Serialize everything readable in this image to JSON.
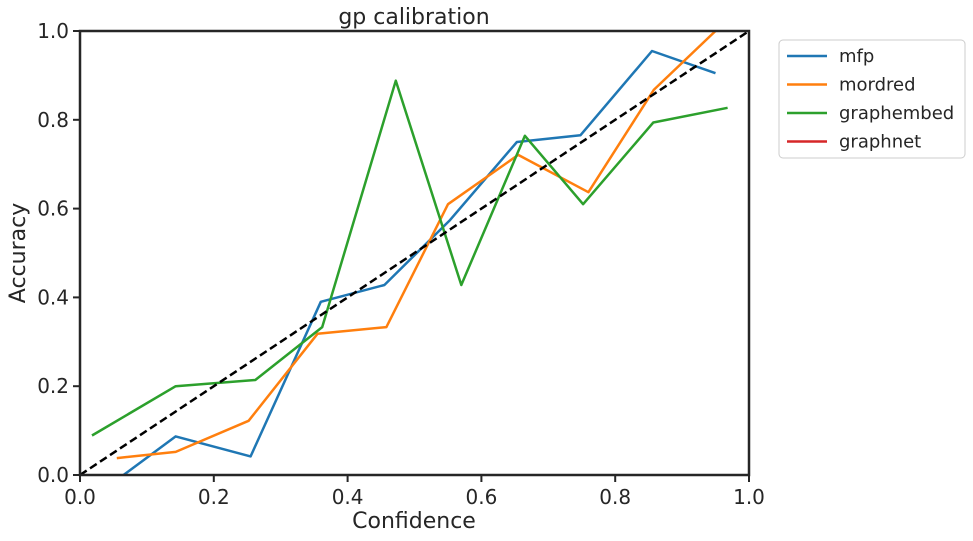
{
  "chart_data": {
    "type": "line",
    "title": "gp calibration",
    "xlabel": "Confidence",
    "ylabel": "Accuracy",
    "xlim": [
      0.0,
      1.0
    ],
    "ylim": [
      0.0,
      1.0
    ],
    "xticks": [
      "0.0",
      "0.2",
      "0.4",
      "0.6",
      "0.8",
      "1.0"
    ],
    "yticks": [
      "0.0",
      "0.2",
      "0.4",
      "0.6",
      "0.8",
      "1.0"
    ],
    "grid": false,
    "legend_position": "outside-top-right",
    "reference_line": {
      "style": "dashed",
      "color": "#000000",
      "x": [
        0.0,
        1.0
      ],
      "y": [
        0.0,
        1.0
      ]
    },
    "series": [
      {
        "name": "mfp",
        "color": "#1f77b4",
        "x": [
          0.065,
          0.143,
          0.255,
          0.36,
          0.455,
          0.553,
          0.653,
          0.748,
          0.855,
          0.95
        ],
        "y": [
          0.0,
          0.087,
          0.042,
          0.39,
          0.428,
          0.574,
          0.75,
          0.765,
          0.955,
          0.905
        ]
      },
      {
        "name": "mordred",
        "color": "#ff7f0e",
        "x": [
          0.055,
          0.143,
          0.252,
          0.355,
          0.458,
          0.55,
          0.655,
          0.76,
          0.858,
          0.95
        ],
        "y": [
          0.038,
          0.052,
          0.122,
          0.318,
          0.333,
          0.61,
          0.721,
          0.637,
          0.868,
          1.0
        ]
      },
      {
        "name": "graphembed",
        "color": "#2ca02c",
        "x": [
          0.018,
          0.143,
          0.262,
          0.362,
          0.472,
          0.57,
          0.665,
          0.752,
          0.857,
          0.968
        ],
        "y": [
          0.089,
          0.2,
          0.214,
          0.333,
          0.888,
          0.428,
          0.764,
          0.61,
          0.794,
          0.827
        ]
      },
      {
        "name": "graphnet",
        "color": "#d62728",
        "x": [],
        "y": []
      }
    ]
  }
}
